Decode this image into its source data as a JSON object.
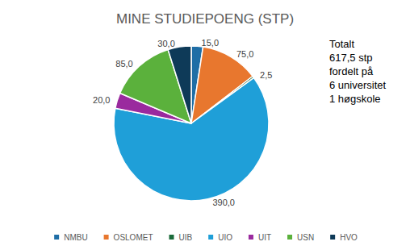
{
  "chart_data": {
    "type": "pie",
    "title": "MINE STUDIEPOENG (STP)",
    "categories": [
      "NMBU",
      "OSLOMET",
      "UIB",
      "UIO",
      "UIT",
      "USN",
      "HVO"
    ],
    "values": [
      15.0,
      75.0,
      2.5,
      390.0,
      20.0,
      85.0,
      30.0
    ],
    "value_labels": [
      "15,0",
      "75,0",
      "2,5",
      "390,0",
      "20,0",
      "85,0",
      "30,0"
    ],
    "colors": [
      "#1f6ea6",
      "#e8772e",
      "#1b6b3a",
      "#1f9fd8",
      "#9a2a9e",
      "#5bb13c",
      "#0e3a58"
    ],
    "data_labels": true,
    "legend": "bottom",
    "annotations": [
      "Totalt",
      "617,5 stp",
      "fordelt på",
      "6 universitet",
      "1 høgskole"
    ]
  }
}
